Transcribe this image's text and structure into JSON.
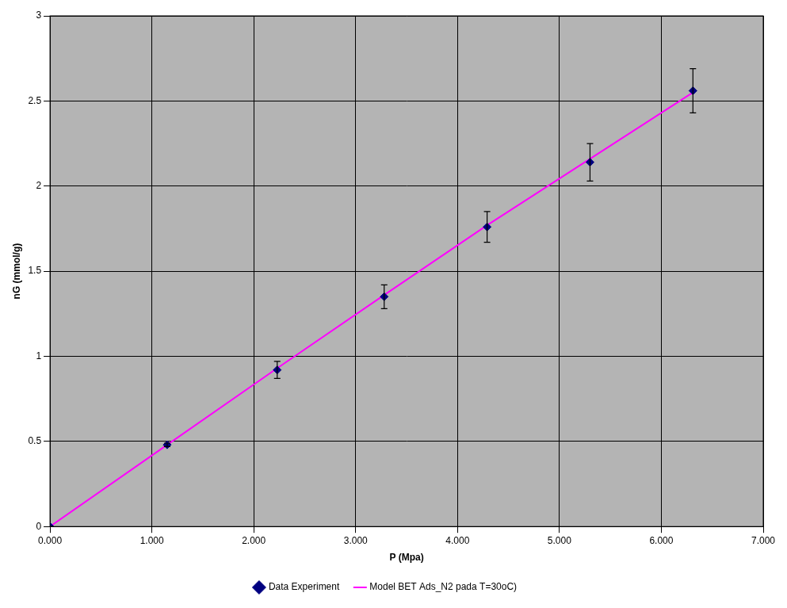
{
  "chart_data": {
    "type": "scatter",
    "x_label": "P (Mpa)",
    "y_label": "nG (mmol/g)",
    "x": [
      0,
      1.15,
      2.23,
      3.28,
      4.29,
      5.3,
      6.31
    ],
    "series": [
      {
        "name": "Data Experiment",
        "type": "scatter",
        "color": "#000080",
        "marker": "diamond",
        "values": [
          0,
          0.48,
          0.92,
          1.35,
          1.76,
          2.14,
          2.56
        ],
        "y_errors": [
          0,
          0.01,
          0.05,
          0.07,
          0.09,
          0.11,
          0.13
        ]
      },
      {
        "name": "Model BET Ads_N2 pada T=30oC)",
        "type": "line",
        "color": "#ff00ff",
        "line_style": "solid",
        "values": [
          0,
          0.48,
          0.93,
          1.36,
          1.77,
          2.16,
          2.55
        ]
      }
    ],
    "xlim": [
      0,
      7
    ],
    "xticks": [
      {
        "value": 0,
        "label": "0.000"
      },
      {
        "value": 1,
        "label": "1.000"
      },
      {
        "value": 2,
        "label": "2.000"
      },
      {
        "value": 3,
        "label": "3.000"
      },
      {
        "value": 4,
        "label": "4.000"
      },
      {
        "value": 5,
        "label": "5.000"
      },
      {
        "value": 6,
        "label": "6.000"
      },
      {
        "value": 7,
        "label": "7.000"
      }
    ],
    "ylim": [
      0,
      3
    ],
    "yticks": [
      0,
      0.5,
      1,
      1.5,
      2,
      2.5,
      3
    ],
    "grid": true,
    "legend": "bottom"
  }
}
